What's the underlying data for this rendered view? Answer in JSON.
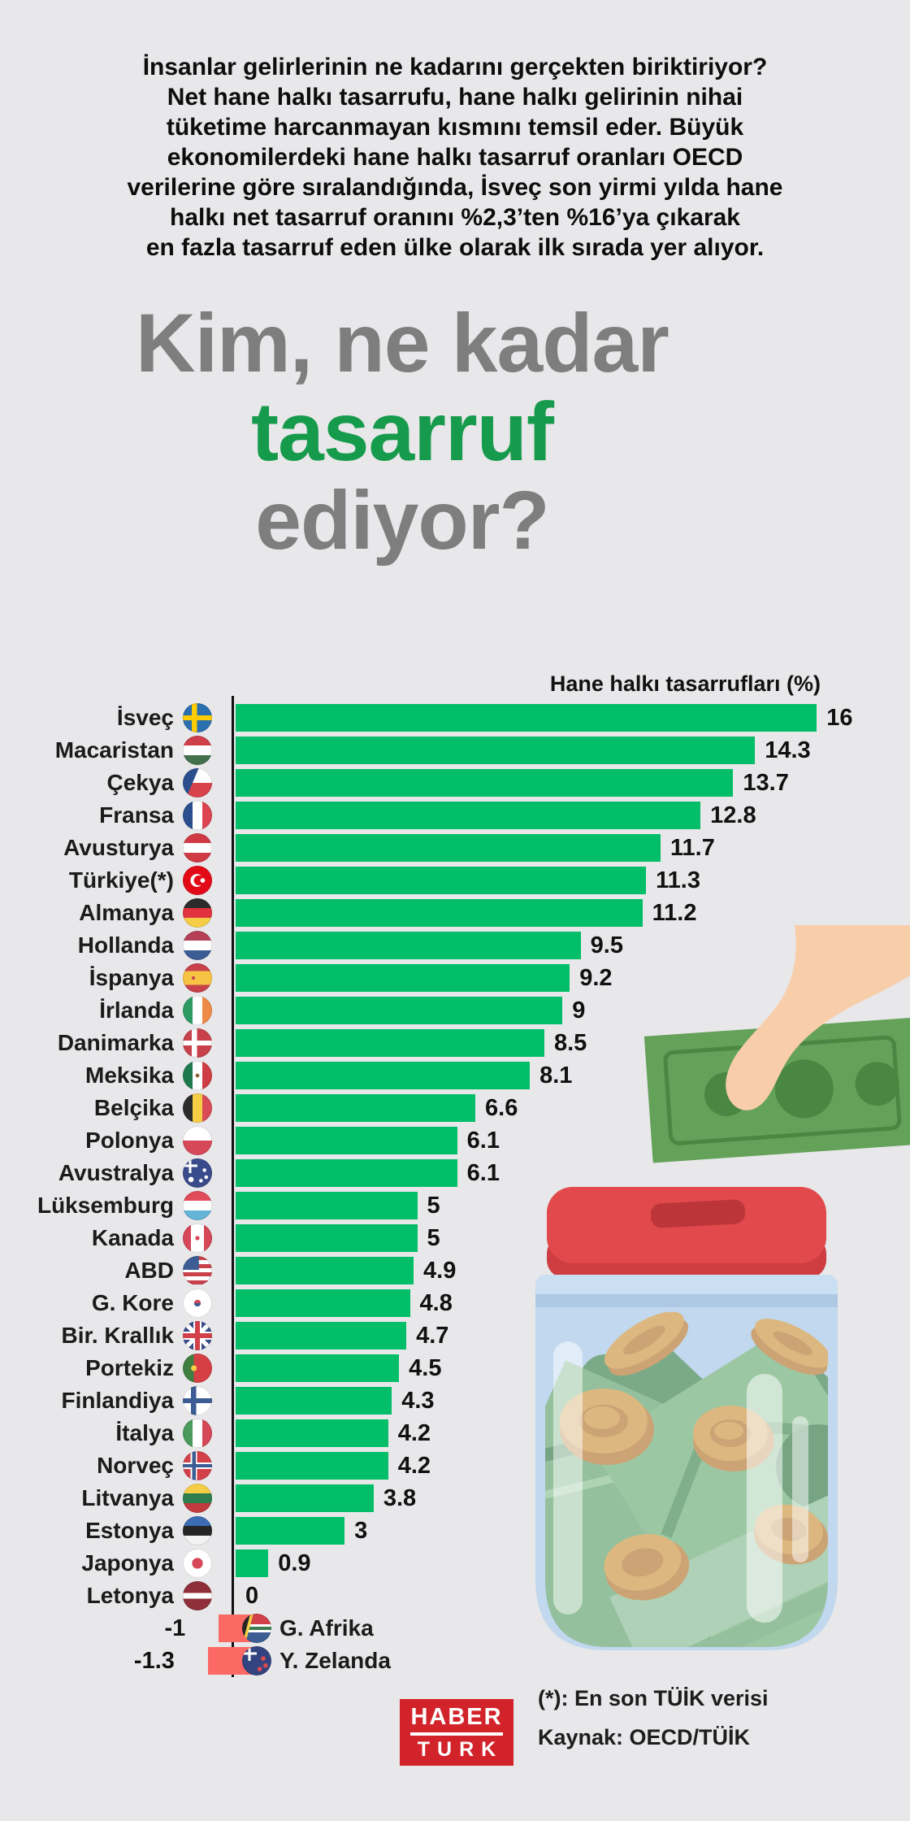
{
  "intro": {
    "text": "İnsanlar gelirlerinin ne kadarını gerçekten biriktiriyor?\nNet hane halkı tasarrufu, hane halkı gelirinin nihai\ntüketime harcanmayan kısmını temsil eder. Büyük\nekonomilerdeki hane halkı tasarruf oranları OECD\nverilerine göre sıralandığında, İsveç son yirmi yılda hane\nhalkı net tasarruf oranını %2,3’ten %16’ya çıkarak\nen fazla tasarruf eden ülke olarak ilk sırada yer alıyor."
  },
  "title": {
    "line1": "Kim, ne kadar",
    "line2": "tasarruf",
    "line3": "ediyor?"
  },
  "chart_data": {
    "type": "bar",
    "orientation": "horizontal",
    "title": "Hane halkı tasarrufları (%)",
    "xlim": [
      -1.3,
      16
    ],
    "bar_color": "#02BE68",
    "negative_bar_color": "#FA6964",
    "rows": [
      {
        "label": "İsveç",
        "flag": "sweden",
        "value": 16,
        "display": "16"
      },
      {
        "label": "Macaristan",
        "flag": "hungary",
        "value": 14.3,
        "display": "14.3"
      },
      {
        "label": "Çekya",
        "flag": "czechia",
        "value": 13.7,
        "display": "13.7"
      },
      {
        "label": "Fransa",
        "flag": "france",
        "value": 12.8,
        "display": "12.8"
      },
      {
        "label": "Avusturya",
        "flag": "austria",
        "value": 11.7,
        "display": "11.7"
      },
      {
        "label": "Türkiye(*)",
        "flag": "turkey",
        "value": 11.3,
        "display": "11.3",
        "bold": true
      },
      {
        "label": "Almanya",
        "flag": "germany",
        "value": 11.2,
        "display": "11.2"
      },
      {
        "label": "Hollanda",
        "flag": "netherlands",
        "value": 9.5,
        "display": "9.5"
      },
      {
        "label": "İspanya",
        "flag": "spain",
        "value": 9.2,
        "display": "9.2"
      },
      {
        "label": "İrlanda",
        "flag": "ireland",
        "value": 9,
        "display": "9"
      },
      {
        "label": "Danimarka",
        "flag": "denmark",
        "value": 8.5,
        "display": "8.5"
      },
      {
        "label": "Meksika",
        "flag": "mexico",
        "value": 8.1,
        "display": "8.1"
      },
      {
        "label": "Belçika",
        "flag": "belgium",
        "value": 6.6,
        "display": "6.6"
      },
      {
        "label": "Polonya",
        "flag": "poland",
        "value": 6.1,
        "display": "6.1"
      },
      {
        "label": "Avustralya",
        "flag": "australia",
        "value": 6.1,
        "display": "6.1"
      },
      {
        "label": "Lüksemburg",
        "flag": "luxembourg",
        "value": 5,
        "display": "5"
      },
      {
        "label": "Kanada",
        "flag": "canada",
        "value": 5,
        "display": "5"
      },
      {
        "label": "ABD",
        "flag": "usa",
        "value": 4.9,
        "display": "4.9"
      },
      {
        "label": "G. Kore",
        "flag": "south-korea",
        "value": 4.8,
        "display": "4.8"
      },
      {
        "label": "Bir. Krallık",
        "flag": "uk",
        "value": 4.7,
        "display": "4.7"
      },
      {
        "label": "Portekiz",
        "flag": "portugal",
        "value": 4.5,
        "display": "4.5"
      },
      {
        "label": "Finlandiya",
        "flag": "finland",
        "value": 4.3,
        "display": "4.3"
      },
      {
        "label": "İtalya",
        "flag": "italy",
        "value": 4.2,
        "display": "4.2"
      },
      {
        "label": "Norveç",
        "flag": "norway",
        "value": 4.2,
        "display": "4.2"
      },
      {
        "label": "Litvanya",
        "flag": "lithuania",
        "value": 3.8,
        "display": "3.8"
      },
      {
        "label": "Estonya",
        "flag": "estonia",
        "value": 3,
        "display": "3"
      },
      {
        "label": "Japonya",
        "flag": "japan",
        "value": 0.9,
        "display": "0.9"
      },
      {
        "label": "Letonya",
        "flag": "latvia",
        "value": 0,
        "display": "0"
      },
      {
        "label": "G. Afrika",
        "flag": "south-africa",
        "value": -1,
        "display": "-1"
      },
      {
        "label": "Y. Zelanda",
        "flag": "new-zealand",
        "value": -1.3,
        "display": "-1.3"
      }
    ]
  },
  "footer": {
    "note": "(*): En son TÜİK verisi",
    "source": "Kaynak: OECD/TÜİK",
    "logo": {
      "line1": "HABER",
      "line2": "TURK",
      "color": "#D2232A"
    }
  },
  "colors": {
    "background": "#E8E7E9",
    "title_gray": "#7E7E7E",
    "title_green": "#169B4C",
    "bar_green": "#02BE68",
    "bar_negative": "#FA6964",
    "axis": "#111111"
  }
}
